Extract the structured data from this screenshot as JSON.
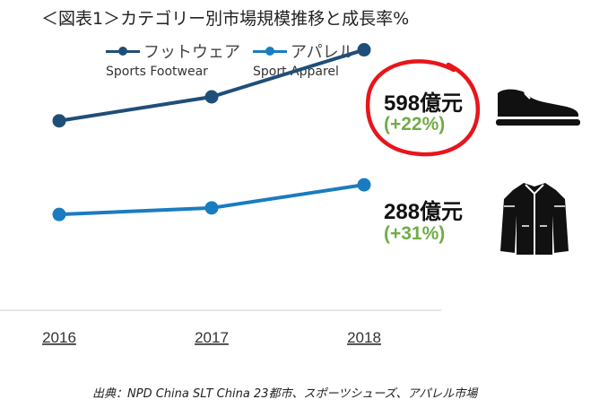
{
  "title": "＜図表1＞カテゴリー別市場規模推移と成長率%",
  "source": "出典：NPD China SLT China 23都市、スポーツシューズ、アパレル市場",
  "colors": {
    "footwear": "#1f4e79",
    "apparel": "#1a7cc0",
    "growth": "#70ad47",
    "highlight": "#e8151b"
  },
  "icons": [
    "sneaker-icon",
    "jacket-icon"
  ],
  "chart_data": {
    "type": "line",
    "x": [
      "2016",
      "2017",
      "2018"
    ],
    "ylim": [
      0,
      700
    ],
    "grid": false,
    "legend_position": "top",
    "series": [
      {
        "name": "フットウェア",
        "subtitle": "Sports Footwear",
        "color": "#1f4e79",
        "values": [
          435,
          490,
          598
        ],
        "end_label": "598億元",
        "growth": "(+22%)"
      },
      {
        "name": "アパレル",
        "subtitle": "Sport Apparel",
        "color": "#1a7cc0",
        "values": [
          220,
          235,
          288
        ],
        "end_label": "288億元",
        "growth": "(+31%)"
      }
    ]
  }
}
